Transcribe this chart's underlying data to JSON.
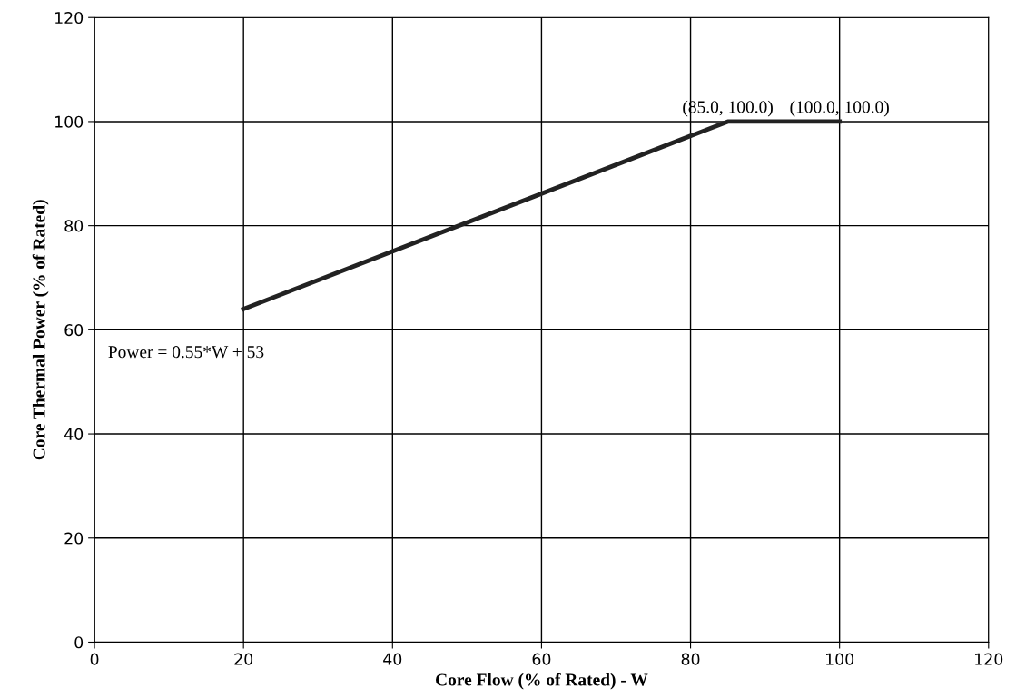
{
  "chart_data": {
    "type": "line",
    "xlabel": "Core Flow (% of Rated) - W",
    "ylabel": "Core Thermal Power (% of Rated)",
    "x": [
      20,
      85,
      100
    ],
    "series": [
      {
        "color": "#222222",
        "values": [
          64,
          100,
          100
        ]
      }
    ],
    "xlim": [
      0,
      120
    ],
    "xticks": [
      0,
      20,
      40,
      60,
      80,
      100,
      120
    ],
    "ylim": [
      0,
      120
    ],
    "yticks": [
      0,
      20,
      40,
      60,
      80,
      100,
      120
    ],
    "grid": true,
    "marker": "none",
    "line_style": "solid",
    "annotations": [
      "Power = 0.55*W + 53",
      {
        "text": "(85.0, 100.0)",
        "x": 85,
        "y": 100
      },
      {
        "text": "(100.0, 100.0)",
        "x": 100,
        "y": 100
      }
    ]
  }
}
